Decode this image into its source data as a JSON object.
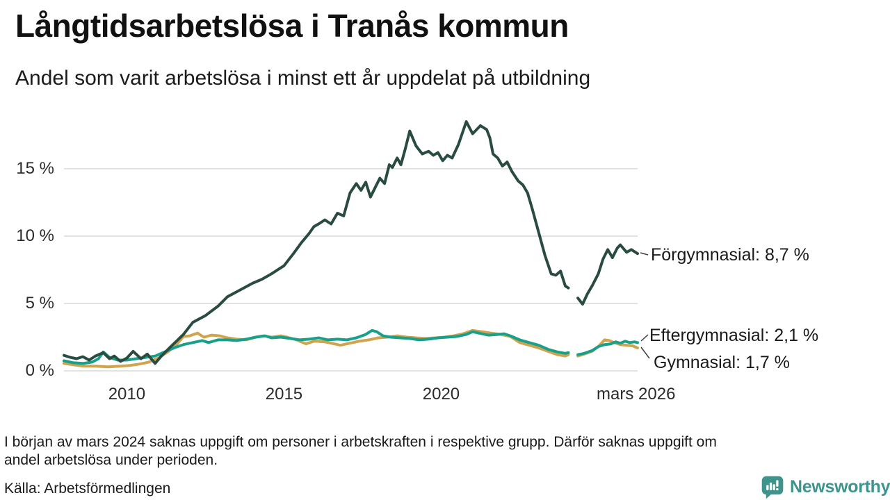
{
  "header": {
    "title": "Långtidsarbetslösa i Tranås kommun",
    "subtitle": "Andel som varit arbetslösa i minst ett år uppdelat på utbildning"
  },
  "chart_data": {
    "type": "line",
    "title": "Långtidsarbetslösa i Tranås kommun",
    "subtitle": "Andel som varit arbetslösa i minst ett år uppdelat på utbildning",
    "unit": "%",
    "grid": "horizontal",
    "x_axis": {
      "range": [
        2008.0,
        2026.25
      ],
      "ticks": [
        {
          "t": 2010,
          "label": "2010"
        },
        {
          "t": 2015,
          "label": "2015"
        },
        {
          "t": 2020,
          "label": "2020"
        },
        {
          "t": 2026.2,
          "label": "mars 2026"
        }
      ]
    },
    "y_axis": {
      "range": [
        0,
        19
      ],
      "ticks": [
        {
          "v": 0,
          "label": "0 %"
        },
        {
          "v": 5,
          "label": "5 %"
        },
        {
          "v": 10,
          "label": "10 %"
        },
        {
          "v": 15,
          "label": "15 %"
        }
      ]
    },
    "data_gap": {
      "around": "mars 2024"
    },
    "series": [
      {
        "name": "Förgymnasial",
        "color": "#2a4c40",
        "end_label": "Förgymnasial: 8,7 %",
        "end_value": "8,7 %",
        "points": [
          [
            2008.0,
            1.15
          ],
          [
            2008.2,
            1.0
          ],
          [
            2008.4,
            0.9
          ],
          [
            2008.6,
            1.05
          ],
          [
            2008.8,
            0.8
          ],
          [
            2009.0,
            1.1
          ],
          [
            2009.25,
            1.35
          ],
          [
            2009.45,
            0.9
          ],
          [
            2009.6,
            1.1
          ],
          [
            2009.8,
            0.7
          ],
          [
            2010.0,
            0.95
          ],
          [
            2010.2,
            1.45
          ],
          [
            2010.45,
            0.9
          ],
          [
            2010.65,
            1.25
          ],
          [
            2010.9,
            0.55
          ],
          [
            2011.1,
            1.1
          ],
          [
            2011.4,
            1.8
          ],
          [
            2011.8,
            2.7
          ],
          [
            2012.1,
            3.6
          ],
          [
            2012.5,
            4.1
          ],
          [
            2012.9,
            4.8
          ],
          [
            2013.2,
            5.5
          ],
          [
            2013.6,
            6.0
          ],
          [
            2014.0,
            6.5
          ],
          [
            2014.3,
            6.8
          ],
          [
            2014.6,
            7.2
          ],
          [
            2015.0,
            7.8
          ],
          [
            2015.3,
            8.7
          ],
          [
            2015.55,
            9.5
          ],
          [
            2015.8,
            10.2
          ],
          [
            2015.95,
            10.7
          ],
          [
            2016.1,
            10.9
          ],
          [
            2016.3,
            11.2
          ],
          [
            2016.5,
            10.9
          ],
          [
            2016.7,
            11.7
          ],
          [
            2016.9,
            11.5
          ],
          [
            2017.1,
            13.2
          ],
          [
            2017.3,
            13.9
          ],
          [
            2017.45,
            13.4
          ],
          [
            2017.6,
            14.0
          ],
          [
            2017.75,
            12.9
          ],
          [
            2017.9,
            13.6
          ],
          [
            2018.05,
            14.3
          ],
          [
            2018.2,
            13.9
          ],
          [
            2018.35,
            15.3
          ],
          [
            2018.45,
            15.1
          ],
          [
            2018.6,
            15.8
          ],
          [
            2018.72,
            15.3
          ],
          [
            2018.85,
            16.4
          ],
          [
            2019.0,
            17.8
          ],
          [
            2019.2,
            16.7
          ],
          [
            2019.4,
            16.1
          ],
          [
            2019.6,
            16.3
          ],
          [
            2019.75,
            16.0
          ],
          [
            2019.9,
            16.2
          ],
          [
            2020.05,
            15.6
          ],
          [
            2020.2,
            16.0
          ],
          [
            2020.35,
            15.8
          ],
          [
            2020.55,
            16.8
          ],
          [
            2020.8,
            18.5
          ],
          [
            2021.0,
            17.6
          ],
          [
            2021.25,
            18.2
          ],
          [
            2021.45,
            17.9
          ],
          [
            2021.55,
            17.3
          ],
          [
            2021.65,
            16.1
          ],
          [
            2021.8,
            15.8
          ],
          [
            2021.95,
            15.2
          ],
          [
            2022.1,
            15.5
          ],
          [
            2022.25,
            14.8
          ],
          [
            2022.45,
            14.1
          ],
          [
            2022.6,
            13.8
          ],
          [
            2022.75,
            13.2
          ],
          [
            2022.9,
            12.0
          ],
          [
            2023.1,
            10.3
          ],
          [
            2023.3,
            8.6
          ],
          [
            2023.5,
            7.2
          ],
          [
            2023.65,
            7.1
          ],
          [
            2023.8,
            7.4
          ],
          [
            2023.95,
            6.3
          ],
          [
            2024.05,
            6.15
          ],
          [
            2024.2,
            null
          ],
          [
            2024.35,
            5.4
          ],
          [
            2024.5,
            4.95
          ],
          [
            2024.65,
            5.7
          ],
          [
            2024.8,
            6.3
          ],
          [
            2025.0,
            7.2
          ],
          [
            2025.15,
            8.3
          ],
          [
            2025.3,
            9.0
          ],
          [
            2025.45,
            8.4
          ],
          [
            2025.6,
            9.1
          ],
          [
            2025.7,
            9.35
          ],
          [
            2025.9,
            8.8
          ],
          [
            2026.05,
            9.0
          ],
          [
            2026.15,
            8.85
          ],
          [
            2026.25,
            8.7
          ]
        ]
      },
      {
        "name": "Eftergymnasial",
        "color": "#18a08a",
        "end_label": "Eftergymnasial: 2,1 %",
        "end_value": "2,1 %",
        "points": [
          [
            2008.0,
            0.75
          ],
          [
            2008.3,
            0.6
          ],
          [
            2008.6,
            0.55
          ],
          [
            2008.9,
            0.65
          ],
          [
            2009.1,
            0.9
          ],
          [
            2009.25,
            1.4
          ],
          [
            2009.45,
            1.0
          ],
          [
            2009.7,
            0.8
          ],
          [
            2010.0,
            0.8
          ],
          [
            2010.3,
            0.9
          ],
          [
            2010.6,
            1.0
          ],
          [
            2010.9,
            1.1
          ],
          [
            2011.2,
            1.4
          ],
          [
            2011.5,
            1.7
          ],
          [
            2011.8,
            1.95
          ],
          [
            2012.1,
            2.1
          ],
          [
            2012.4,
            2.25
          ],
          [
            2012.6,
            2.1
          ],
          [
            2012.9,
            2.3
          ],
          [
            2013.2,
            2.3
          ],
          [
            2013.5,
            2.25
          ],
          [
            2013.8,
            2.35
          ],
          [
            2014.1,
            2.5
          ],
          [
            2014.4,
            2.6
          ],
          [
            2014.6,
            2.45
          ],
          [
            2014.9,
            2.5
          ],
          [
            2015.2,
            2.4
          ],
          [
            2015.5,
            2.3
          ],
          [
            2015.8,
            2.35
          ],
          [
            2016.1,
            2.45
          ],
          [
            2016.4,
            2.3
          ],
          [
            2016.7,
            2.35
          ],
          [
            2017.0,
            2.3
          ],
          [
            2017.3,
            2.45
          ],
          [
            2017.6,
            2.7
          ],
          [
            2017.8,
            3.0
          ],
          [
            2017.95,
            2.9
          ],
          [
            2018.15,
            2.6
          ],
          [
            2018.4,
            2.5
          ],
          [
            2018.7,
            2.45
          ],
          [
            2019.0,
            2.4
          ],
          [
            2019.3,
            2.3
          ],
          [
            2019.6,
            2.35
          ],
          [
            2019.9,
            2.45
          ],
          [
            2020.2,
            2.5
          ],
          [
            2020.5,
            2.55
          ],
          [
            2020.8,
            2.7
          ],
          [
            2021.0,
            2.9
          ],
          [
            2021.2,
            2.8
          ],
          [
            2021.5,
            2.65
          ],
          [
            2021.8,
            2.7
          ],
          [
            2022.0,
            2.75
          ],
          [
            2022.2,
            2.6
          ],
          [
            2022.5,
            2.3
          ],
          [
            2022.8,
            2.1
          ],
          [
            2023.1,
            1.9
          ],
          [
            2023.4,
            1.6
          ],
          [
            2023.7,
            1.4
          ],
          [
            2023.95,
            1.3
          ],
          [
            2024.05,
            1.35
          ],
          [
            2024.2,
            null
          ],
          [
            2024.35,
            1.2
          ],
          [
            2024.55,
            1.3
          ],
          [
            2024.8,
            1.5
          ],
          [
            2025.0,
            1.8
          ],
          [
            2025.2,
            1.95
          ],
          [
            2025.4,
            2.0
          ],
          [
            2025.55,
            2.15
          ],
          [
            2025.7,
            2.05
          ],
          [
            2025.85,
            2.2
          ],
          [
            2026.0,
            2.1
          ],
          [
            2026.15,
            2.15
          ],
          [
            2026.25,
            2.1
          ]
        ]
      },
      {
        "name": "Gymnasial",
        "color": "#d0a44f",
        "end_label": "Gymnasial: 1,7 %",
        "end_value": "1,7 %",
        "points": [
          [
            2008.0,
            0.55
          ],
          [
            2008.3,
            0.45
          ],
          [
            2008.6,
            0.35
          ],
          [
            2009.0,
            0.35
          ],
          [
            2009.4,
            0.3
          ],
          [
            2009.8,
            0.35
          ],
          [
            2010.1,
            0.4
          ],
          [
            2010.4,
            0.5
          ],
          [
            2010.7,
            0.65
          ],
          [
            2011.0,
            0.95
          ],
          [
            2011.3,
            1.4
          ],
          [
            2011.6,
            2.0
          ],
          [
            2011.8,
            2.55
          ],
          [
            2012.0,
            2.6
          ],
          [
            2012.25,
            2.8
          ],
          [
            2012.45,
            2.5
          ],
          [
            2012.7,
            2.65
          ],
          [
            2012.95,
            2.6
          ],
          [
            2013.2,
            2.45
          ],
          [
            2013.5,
            2.35
          ],
          [
            2013.8,
            2.3
          ],
          [
            2014.1,
            2.5
          ],
          [
            2014.35,
            2.6
          ],
          [
            2014.6,
            2.5
          ],
          [
            2014.9,
            2.6
          ],
          [
            2015.1,
            2.5
          ],
          [
            2015.4,
            2.3
          ],
          [
            2015.7,
            2.0
          ],
          [
            2015.95,
            2.2
          ],
          [
            2016.3,
            2.15
          ],
          [
            2016.6,
            2.0
          ],
          [
            2016.8,
            1.9
          ],
          [
            2017.1,
            2.05
          ],
          [
            2017.4,
            2.2
          ],
          [
            2017.7,
            2.3
          ],
          [
            2018.0,
            2.45
          ],
          [
            2018.3,
            2.5
          ],
          [
            2018.6,
            2.6
          ],
          [
            2018.9,
            2.5
          ],
          [
            2019.2,
            2.45
          ],
          [
            2019.5,
            2.4
          ],
          [
            2019.8,
            2.45
          ],
          [
            2020.1,
            2.5
          ],
          [
            2020.4,
            2.6
          ],
          [
            2020.7,
            2.75
          ],
          [
            2021.0,
            3.0
          ],
          [
            2021.3,
            2.9
          ],
          [
            2021.6,
            2.8
          ],
          [
            2021.9,
            2.7
          ],
          [
            2022.2,
            2.55
          ],
          [
            2022.5,
            2.1
          ],
          [
            2022.8,
            1.9
          ],
          [
            2023.1,
            1.7
          ],
          [
            2023.4,
            1.45
          ],
          [
            2023.7,
            1.2
          ],
          [
            2023.95,
            1.1
          ],
          [
            2024.05,
            1.2
          ],
          [
            2024.2,
            null
          ],
          [
            2024.35,
            1.1
          ],
          [
            2024.55,
            1.25
          ],
          [
            2024.8,
            1.45
          ],
          [
            2025.0,
            1.8
          ],
          [
            2025.2,
            2.3
          ],
          [
            2025.35,
            2.25
          ],
          [
            2025.5,
            2.1
          ],
          [
            2025.7,
            1.95
          ],
          [
            2025.9,
            1.9
          ],
          [
            2026.1,
            1.85
          ],
          [
            2026.25,
            1.7
          ]
        ]
      }
    ]
  },
  "footnote": {
    "line1": "I början av mars 2024 saknas uppgift om personer i arbetskraften i respektive grupp. Därför saknas uppgift om",
    "line2": "andel arbetslösa under perioden."
  },
  "source": "Källa: Arbetsförmedlingen",
  "branding": {
    "name": "Newsworthy",
    "color": "#3e948c",
    "icon": "bar-chart-speech-bubble"
  }
}
